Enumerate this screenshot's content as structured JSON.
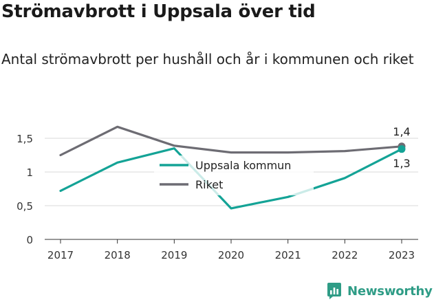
{
  "header": {
    "title": "Strömavbrott i Uppsala över tid",
    "subtitle": "Antal strömavbrott per hushåll och år i kommunen och riket"
  },
  "brand": {
    "name": "Newsworthy"
  },
  "chart_data": {
    "type": "line",
    "x": [
      "2017",
      "2018",
      "2019",
      "2020",
      "2021",
      "2022",
      "2023"
    ],
    "ylim": [
      0,
      1.5
    ],
    "yticks": [
      0,
      0.5,
      1,
      1.5
    ],
    "ytick_labels": [
      "0",
      "0,5",
      "1",
      "1,5"
    ],
    "grid": true,
    "legend_position": "center",
    "series": [
      {
        "name": "Uppsala kommun",
        "color": "#14a396",
        "values": [
          0.72,
          1.14,
          1.35,
          0.46,
          0.63,
          0.91,
          1.34
        ],
        "end_label": "1,3"
      },
      {
        "name": "Riket",
        "color": "#6d6c73",
        "values": [
          1.25,
          1.67,
          1.39,
          1.29,
          1.29,
          1.31,
          1.38
        ],
        "end_label": "1,4"
      }
    ]
  }
}
